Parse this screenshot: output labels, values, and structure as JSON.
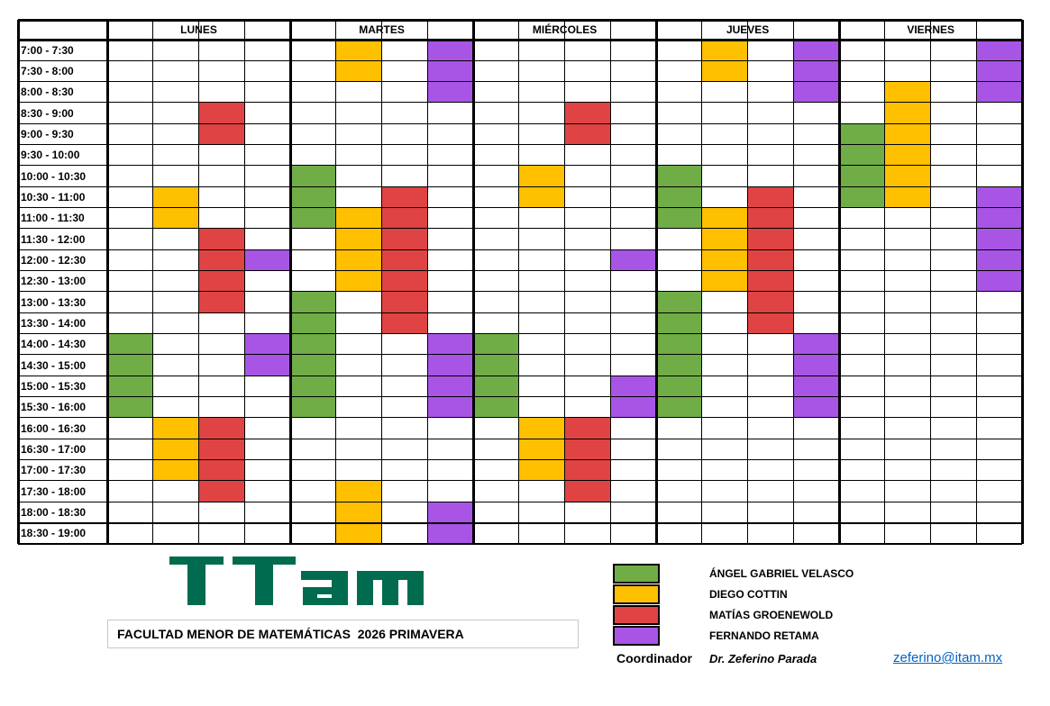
{
  "colors": {
    "velasco": "#70ad47",
    "cottin": "#ffc000",
    "groenewold": "#e04343",
    "retama": "#a855e6"
  },
  "schedule": {
    "days": [
      "LUNES",
      "MARTES",
      "MIÉRCOLES",
      "JUEVES",
      "VIERNES"
    ],
    "columns_per_day": 4,
    "time_slots": [
      "7:00 - 7:30",
      "7:30 - 8:00",
      "8:00 - 8:30",
      "8:30 - 9:00",
      "9:00 - 9:30",
      "9:30 - 10:00",
      "10:00 - 10:30",
      "10:30 - 11:00",
      "11:00 - 11:30",
      "11:30 - 12:00",
      "12:00 - 12:30",
      "12:30 - 13:00",
      "13:00 - 13:30",
      "13:30 - 14:00",
      "14:00 - 14:30",
      "14:30 - 15:00",
      "15:00 - 15:30",
      "15:30 - 16:00",
      "16:00 - 16:30",
      "16:30 - 17:00",
      "17:00 - 17:30",
      "17:30 - 18:00",
      "18:00 - 18:30",
      "18:30 - 19:00"
    ],
    "blocks": [
      {
        "day": 0,
        "col": 0,
        "from": 14,
        "to": 17,
        "color": "velasco"
      },
      {
        "day": 0,
        "col": 1,
        "from": 7,
        "to": 8,
        "color": "cottin"
      },
      {
        "day": 0,
        "col": 1,
        "from": 18,
        "to": 20,
        "color": "cottin"
      },
      {
        "day": 0,
        "col": 2,
        "from": 3,
        "to": 4,
        "color": "groenewold"
      },
      {
        "day": 0,
        "col": 2,
        "from": 9,
        "to": 12,
        "color": "groenewold"
      },
      {
        "day": 0,
        "col": 2,
        "from": 18,
        "to": 21,
        "color": "groenewold"
      },
      {
        "day": 0,
        "col": 3,
        "from": 10,
        "to": 10,
        "color": "retama"
      },
      {
        "day": 0,
        "col": 3,
        "from": 14,
        "to": 15,
        "color": "retama"
      },
      {
        "day": 1,
        "col": 0,
        "from": 6,
        "to": 8,
        "color": "velasco"
      },
      {
        "day": 1,
        "col": 0,
        "from": 12,
        "to": 17,
        "color": "velasco"
      },
      {
        "day": 1,
        "col": 1,
        "from": 0,
        "to": 1,
        "color": "cottin"
      },
      {
        "day": 1,
        "col": 1,
        "from": 8,
        "to": 11,
        "color": "cottin"
      },
      {
        "day": 1,
        "col": 1,
        "from": 21,
        "to": 23,
        "color": "cottin"
      },
      {
        "day": 1,
        "col": 2,
        "from": 7,
        "to": 13,
        "color": "groenewold"
      },
      {
        "day": 1,
        "col": 3,
        "from": 0,
        "to": 2,
        "color": "retama"
      },
      {
        "day": 1,
        "col": 3,
        "from": 14,
        "to": 17,
        "color": "retama"
      },
      {
        "day": 1,
        "col": 3,
        "from": 22,
        "to": 23,
        "color": "retama"
      },
      {
        "day": 2,
        "col": 0,
        "from": 14,
        "to": 17,
        "color": "velasco"
      },
      {
        "day": 2,
        "col": 1,
        "from": 6,
        "to": 7,
        "color": "cottin"
      },
      {
        "day": 2,
        "col": 1,
        "from": 18,
        "to": 20,
        "color": "cottin"
      },
      {
        "day": 2,
        "col": 2,
        "from": 3,
        "to": 4,
        "color": "groenewold"
      },
      {
        "day": 2,
        "col": 2,
        "from": 18,
        "to": 21,
        "color": "groenewold"
      },
      {
        "day": 2,
        "col": 3,
        "from": 10,
        "to": 10,
        "color": "retama"
      },
      {
        "day": 2,
        "col": 3,
        "from": 16,
        "to": 17,
        "color": "retama"
      },
      {
        "day": 3,
        "col": 0,
        "from": 6,
        "to": 8,
        "color": "velasco"
      },
      {
        "day": 3,
        "col": 0,
        "from": 12,
        "to": 17,
        "color": "velasco"
      },
      {
        "day": 3,
        "col": 1,
        "from": 0,
        "to": 1,
        "color": "cottin"
      },
      {
        "day": 3,
        "col": 1,
        "from": 8,
        "to": 11,
        "color": "cottin"
      },
      {
        "day": 3,
        "col": 2,
        "from": 7,
        "to": 13,
        "color": "groenewold"
      },
      {
        "day": 3,
        "col": 3,
        "from": 0,
        "to": 2,
        "color": "retama"
      },
      {
        "day": 3,
        "col": 3,
        "from": 14,
        "to": 17,
        "color": "retama"
      },
      {
        "day": 4,
        "col": 0,
        "from": 4,
        "to": 7,
        "color": "velasco"
      },
      {
        "day": 4,
        "col": 1,
        "from": 2,
        "to": 7,
        "color": "cottin"
      },
      {
        "day": 4,
        "col": 3,
        "from": 0,
        "to": 2,
        "color": "retama"
      },
      {
        "day": 4,
        "col": 3,
        "from": 7,
        "to": 11,
        "color": "retama"
      }
    ]
  },
  "logo": {
    "text": "ITAM"
  },
  "faculty_title": "FACULTAD MENOR DE MATEMÁTICAS  2026 PRIMAVERA",
  "legend": [
    {
      "key": "velasco",
      "name": "ÁNGEL GABRIEL VELASCO"
    },
    {
      "key": "cottin",
      "name": "DIEGO COTTIN"
    },
    {
      "key": "groenewold",
      "name": "MATÍAS GROENEWOLD"
    },
    {
      "key": "retama",
      "name": "FERNANDO RETAMA"
    }
  ],
  "coordinator": {
    "label": "Coordinador",
    "name": "Dr. Zeferino Parada",
    "email": "zeferino@itam.mx"
  }
}
